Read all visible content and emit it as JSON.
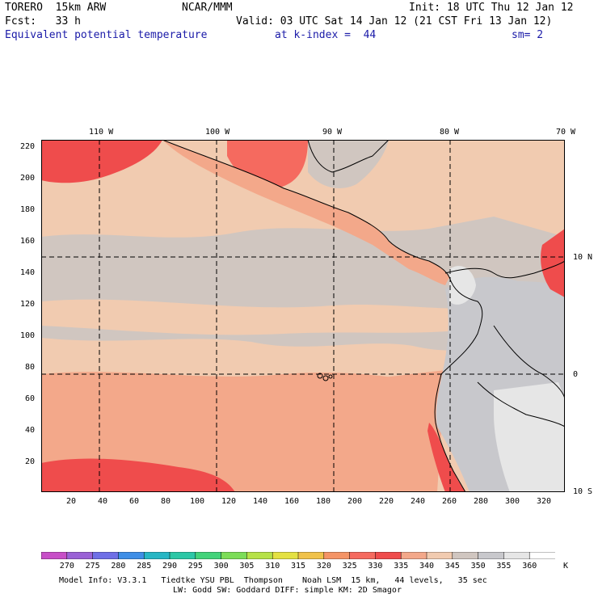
{
  "header": {
    "model": "TORERO  15km ARW",
    "org": "NCAR/MMM",
    "init": "Init: 18 UTC Thu 12 Jan 12",
    "fcst": "Fcst:   33 h",
    "valid": "Valid: 03 UTC Sat 14 Jan 12 (21 CST Fri 13 Jan 12)",
    "field": "Equivalent potential temperature",
    "level": "at k-index =  44",
    "smooth": "sm= 2"
  },
  "map": {
    "lon_labels": [
      "110 W",
      "100 W",
      "90 W",
      "80 W",
      "70 W"
    ],
    "lat_labels": [
      "10 N",
      "0",
      "10 S"
    ],
    "y_ticks": [
      "220",
      "200",
      "180",
      "160",
      "140",
      "120",
      "100",
      "80",
      "60",
      "40",
      "20"
    ],
    "x_ticks": [
      "20",
      "40",
      "60",
      "80",
      "100",
      "120",
      "140",
      "160",
      "180",
      "200",
      "220",
      "240",
      "260",
      "280",
      "300",
      "320"
    ]
  },
  "colorbar": {
    "labels": [
      "270",
      "275",
      "280",
      "285",
      "290",
      "295",
      "300",
      "305",
      "310",
      "315",
      "320",
      "325",
      "330",
      "335",
      "340",
      "345",
      "350",
      "355",
      "360"
    ],
    "unit": "K",
    "colors": [
      "#c74fc7",
      "#9a62d6",
      "#6f6fe6",
      "#3e8ee6",
      "#27b6c4",
      "#2cc7a6",
      "#43d37a",
      "#7cdd58",
      "#b6e248",
      "#e4e142",
      "#f0c24a",
      "#f49466",
      "#f56a5f",
      "#ef4c4c",
      "#f3a88a",
      "#f1cbb0",
      "#d0c6c0",
      "#c8c8cc",
      "#e6e6e6",
      "#ffffff"
    ]
  },
  "footer": {
    "line1": "Model Info: V3.3.1   Tiedtke YSU PBL  Thompson    Noah LSM  15 km,   44 levels,   35 sec",
    "line2": "LW: Godd SW: Goddard DIFF: simple KM: 2D Smagor"
  }
}
